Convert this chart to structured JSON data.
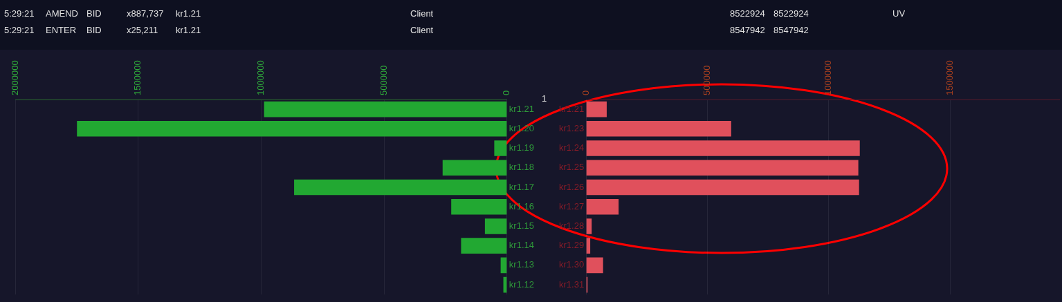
{
  "chart_data": [
    {
      "type": "other",
      "annotations": [
        "5:29:21",
        "AMEND",
        "BID",
        "x887,737",
        "kr1.21",
        "5:29:21",
        "ENTER",
        "BID",
        "x25,211",
        "kr1.21",
        "Client",
        "Client",
        "8522924",
        "8522924",
        "UV",
        "8547942",
        "8547942",
        "1"
      ]
    },
    {
      "type": "bar",
      "orientation": "horizontal",
      "categories": [
        "kr1.21",
        "kr1.20",
        "kr1.19",
        "kr1.18",
        "kr1.17",
        "kr1.16",
        "kr1.15",
        "kr1.14",
        "kr1.13",
        "kr1.12"
      ],
      "values": [
        988000,
        1749000,
        52000,
        262000,
        866000,
        227000,
        90000,
        187000,
        26000,
        15000
      ],
      "color": "#22a832",
      "xlim": [
        2000000,
        0
      ],
      "xticks": [
        2000000,
        1500000,
        1000000,
        500000,
        0
      ],
      "grid": "x"
    },
    {
      "type": "bar",
      "orientation": "horizontal",
      "categories": [
        "kr1.21",
        "kr1.23",
        "kr1.24",
        "kr1.25",
        "kr1.26",
        "kr1.27",
        "kr1.28",
        "kr1.29",
        "kr1.30",
        "kr1.31"
      ],
      "values": [
        85000,
        598000,
        1128000,
        1122000,
        1125000,
        134000,
        23000,
        17000,
        70000,
        6000
      ],
      "color": "#e0505c",
      "xlim": [
        0,
        1950000
      ],
      "xticks": [
        0,
        500000,
        1000000,
        1500000
      ],
      "grid": "x"
    }
  ]
}
